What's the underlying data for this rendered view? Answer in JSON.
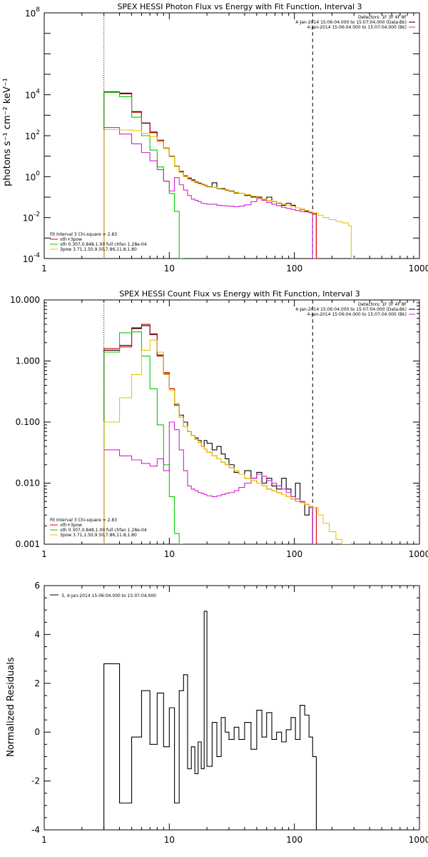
{
  "chart_data": [
    {
      "type": "line",
      "title": "SPEX HESSI Photon Flux vs Energy with Fit Function, Interval 3",
      "ylabel": "photons s⁻¹ cm⁻² keV⁻¹",
      "xlabel": "",
      "xscale": "log",
      "yscale": "log",
      "xlim": [
        1,
        1000
      ],
      "ylim": [
        0.0001,
        100000000
      ],
      "xticks": [
        {
          "v": 1,
          "t": "1"
        },
        {
          "v": 10,
          "t": "10"
        },
        {
          "v": 100,
          "t": "100"
        },
        {
          "v": 1000,
          "t": "1000"
        }
      ],
      "yticks": [
        {
          "v": 0.0001,
          "b": "10",
          "e": "-4"
        },
        {
          "v": 0.01,
          "b": "10",
          "e": "-2"
        },
        {
          "v": 1,
          "b": "10",
          "e": "0"
        },
        {
          "v": 100,
          "b": "10",
          "e": "2"
        },
        {
          "v": 10000,
          "b": "10",
          "e": "4"
        },
        {
          "v": 100000000,
          "b": "10",
          "e": "8"
        }
      ],
      "vlines": [
        {
          "x": 3,
          "style": "dotted"
        },
        {
          "x": 140,
          "style": "dashed"
        }
      ],
      "legend_top": [
        "Detectors: 1F 3F 4F 8F",
        "4-Jan-2014 15:06:04.000 to 15:07:04.000 (Data-Bk)",
        "4-Jan-2014 15:06:04.000 to 15:07:04.000 (Bk)"
      ],
      "legend_top_colors": [
        "#000000",
        "#000000",
        "#d020d0"
      ],
      "legend_bottom": [
        "Fit Interval 3   Chi-square = 2.83",
        "vth+3pow",
        "vth 0.307,0.848,1.00  full chfan 1.28e-04",
        "3pow 3.71,1.50,9.50,7.86,11.8,1.80"
      ],
      "legend_bottom_colors": [
        "#000000",
        "#e00000",
        "#00cc00",
        "#e6c800"
      ],
      "series": [
        {
          "color": "#000000",
          "x": [
            3,
            4,
            5,
            6,
            7,
            8,
            9,
            10,
            11,
            12,
            13,
            14,
            15,
            16,
            17,
            18,
            19,
            20,
            22,
            24,
            26,
            28,
            30,
            33,
            36,
            40,
            45,
            50,
            55,
            60,
            66,
            72,
            79,
            86,
            94,
            102,
            111,
            121,
            131,
            140
          ],
          "y": [
            13000,
            12000,
            1500,
            420,
            150,
            60,
            25,
            10,
            3.2,
            1.8,
            1.1,
            0.85,
            0.7,
            0.55,
            0.48,
            0.42,
            0.38,
            0.32,
            0.5,
            0.26,
            0.26,
            0.22,
            0.2,
            0.16,
            0.15,
            0.12,
            0.1,
            0.1,
            0.07,
            0.1,
            0.06,
            0.05,
            0.04,
            0.05,
            0.04,
            0.03,
            0.025,
            0.02,
            0.018,
            0.015
          ]
        },
        {
          "color": "#e00000",
          "x": [
            3,
            4,
            5,
            6,
            7,
            8,
            9,
            10,
            11,
            12,
            13,
            14,
            15,
            16,
            17,
            18,
            19,
            20,
            22,
            24,
            26,
            28,
            30,
            33,
            36,
            40,
            45,
            50,
            55,
            60,
            66,
            72,
            79,
            86,
            94,
            102,
            111,
            121,
            131,
            140
          ],
          "y": [
            14000,
            11000,
            1400,
            400,
            140,
            58,
            24,
            9.5,
            3.2,
            1.7,
            1.05,
            0.78,
            0.62,
            0.52,
            0.45,
            0.4,
            0.36,
            0.33,
            0.3,
            0.27,
            0.24,
            0.21,
            0.19,
            0.17,
            0.15,
            0.13,
            0.11,
            0.09,
            0.08,
            0.068,
            0.06,
            0.052,
            0.045,
            0.04,
            0.034,
            0.03,
            0.026,
            0.022,
            0.019,
            0.017
          ]
        },
        {
          "color": "#00cc00",
          "x": [
            3,
            4,
            5,
            6,
            7,
            8,
            9,
            10,
            11,
            12
          ],
          "y": [
            13000,
            8000,
            800,
            100,
            20,
            3,
            0.6,
            0.15,
            0.02,
            0.0001
          ]
        },
        {
          "color": "#d020d0",
          "x": [
            3,
            4,
            5,
            6,
            7,
            8,
            9,
            10,
            11,
            12,
            13,
            14,
            15,
            16,
            17,
            18,
            19,
            20,
            22,
            24,
            26,
            28,
            30,
            33,
            36,
            40,
            45,
            50,
            55,
            60,
            66,
            72,
            79,
            86,
            94,
            102,
            111,
            121,
            131,
            140
          ],
          "y": [
            250,
            120,
            40,
            15,
            6,
            2.2,
            0.6,
            0.2,
            0.9,
            0.4,
            0.22,
            0.12,
            0.08,
            0.07,
            0.06,
            0.05,
            0.048,
            0.045,
            0.045,
            0.04,
            0.038,
            0.037,
            0.036,
            0.034,
            0.036,
            0.042,
            0.06,
            0.085,
            0.07,
            0.055,
            0.045,
            0.038,
            0.032,
            0.028,
            0.025,
            0.022,
            0.02,
            0.019,
            0.017,
            0.0001
          ]
        },
        {
          "color": "#e6c800",
          "x": [
            3,
            4,
            5,
            6,
            7,
            8,
            9,
            10,
            11,
            12,
            13,
            14,
            15,
            16,
            17,
            18,
            19,
            20,
            22,
            24,
            26,
            28,
            30,
            33,
            36,
            40,
            45,
            50,
            55,
            60,
            66,
            72,
            79,
            86,
            94,
            102,
            111,
            121,
            131,
            140,
            155,
            170,
            190,
            215,
            240,
            270,
            285
          ],
          "y": [
            200,
            190,
            180,
            130,
            90,
            50,
            24,
            9.5,
            3.1,
            1.6,
            1.0,
            0.75,
            0.6,
            0.5,
            0.44,
            0.4,
            0.36,
            0.33,
            0.3,
            0.27,
            0.24,
            0.21,
            0.19,
            0.17,
            0.15,
            0.13,
            0.11,
            0.09,
            0.08,
            0.068,
            0.06,
            0.052,
            0.045,
            0.04,
            0.034,
            0.03,
            0.026,
            0.022,
            0.019,
            0.017,
            0.013,
            0.01,
            0.008,
            0.0065,
            0.0055,
            0.004,
            0.0001
          ]
        }
      ]
    },
    {
      "type": "line",
      "title": "SPEX HESSI Count Flux vs Energy with Fit Function, Interval 3",
      "ylabel": "",
      "xlabel": "",
      "xscale": "log",
      "yscale": "log",
      "xlim": [
        1,
        1000
      ],
      "ylim": [
        0.001,
        10
      ],
      "xticks": [
        {
          "v": 1,
          "t": "1"
        },
        {
          "v": 10,
          "t": "10"
        },
        {
          "v": 100,
          "t": "100"
        },
        {
          "v": 1000,
          "t": "1000"
        }
      ],
      "yticks": [
        {
          "v": 0.001,
          "t": "0.001"
        },
        {
          "v": 0.01,
          "t": "0.010"
        },
        {
          "v": 0.1,
          "t": "0.100"
        },
        {
          "v": 1,
          "t": "1.000"
        },
        {
          "v": 10,
          "t": "10.000"
        }
      ],
      "vlines": [
        {
          "x": 3,
          "style": "dotted"
        },
        {
          "x": 140,
          "style": "dashed"
        }
      ],
      "legend_top": [
        "Detectors: 1F 3F 4F 8F",
        "4-Jan-2014 15:06:04.000 to 15:07:04.000 (Data-Bk)",
        "4-Jan-2014 15:06:04.000 to 15:07:04.000 (Bk)"
      ],
      "legend_top_colors": [
        "#000000",
        "#000000",
        "#d020d0"
      ],
      "legend_bottom": [
        "Fit Interval 3   Chi-square = 2.83",
        "vth+3pow",
        "vth 0.307,0.848,1.00  full chfan 1.28e-04",
        "3pow 3.71,1.50,9.50,7.86,11.8,1.80"
      ],
      "legend_bottom_colors": [
        "#000000",
        "#e00000",
        "#00cc00",
        "#e6c800"
      ],
      "series": [
        {
          "color": "#000000",
          "x": [
            3,
            4,
            5,
            6,
            7,
            8,
            9,
            10,
            11,
            12,
            13,
            14,
            15,
            16,
            17,
            18,
            19,
            20,
            22,
            24,
            26,
            28,
            30,
            33,
            36,
            40,
            45,
            50,
            55,
            60,
            66,
            72,
            79,
            86,
            94,
            102,
            111,
            121,
            131,
            140
          ],
          "y": [
            1.5,
            1.8,
            3.4,
            3.8,
            2.7,
            1.25,
            0.62,
            0.35,
            0.19,
            0.13,
            0.1,
            0.07,
            0.06,
            0.055,
            0.05,
            0.04,
            0.05,
            0.045,
            0.035,
            0.04,
            0.03,
            0.025,
            0.02,
            0.015,
            0.014,
            0.016,
            0.012,
            0.015,
            0.01,
            0.012,
            0.009,
            0.008,
            0.012,
            0.008,
            0.006,
            0.01,
            0.005,
            0.003,
            0.004,
            0.001
          ]
        },
        {
          "color": "#e00000",
          "x": [
            3,
            4,
            5,
            6,
            7,
            8,
            9,
            10,
            11,
            12,
            13,
            14,
            15,
            16,
            17,
            18,
            19,
            20,
            22,
            24,
            26,
            28,
            30,
            33,
            36,
            40,
            45,
            50,
            55,
            60,
            66,
            72,
            79,
            86,
            94,
            102,
            111,
            121,
            131,
            140
          ],
          "y": [
            1.6,
            1.7,
            3.5,
            4.0,
            2.8,
            1.2,
            0.65,
            0.35,
            0.2,
            0.12,
            0.085,
            0.07,
            0.06,
            0.052,
            0.046,
            0.04,
            0.036,
            0.032,
            0.028,
            0.025,
            0.022,
            0.02,
            0.018,
            0.016,
            0.014,
            0.012,
            0.011,
            0.01,
            0.009,
            0.008,
            0.0075,
            0.007,
            0.0065,
            0.006,
            0.0055,
            0.005,
            0.0048,
            0.0045,
            0.0042,
            0.004
          ]
        },
        {
          "color": "#00cc00",
          "x": [
            3,
            4,
            5,
            6,
            7,
            8,
            9,
            10,
            11,
            12
          ],
          "y": [
            1.4,
            2.9,
            3.0,
            1.2,
            0.35,
            0.09,
            0.02,
            0.006,
            0.0015,
            0.001
          ]
        },
        {
          "color": "#d020d0",
          "x": [
            3,
            4,
            5,
            6,
            7,
            8,
            9,
            10,
            11,
            12,
            13,
            14,
            15,
            16,
            17,
            18,
            19,
            20,
            22,
            24,
            26,
            28,
            30,
            33,
            36,
            40,
            45,
            50,
            55,
            60,
            66,
            72,
            79,
            86,
            94,
            102,
            111,
            121,
            131,
            140
          ],
          "y": [
            0.035,
            0.028,
            0.024,
            0.021,
            0.019,
            0.025,
            0.016,
            0.1,
            0.075,
            0.035,
            0.016,
            0.009,
            0.008,
            0.0075,
            0.007,
            0.0068,
            0.0065,
            0.0062,
            0.006,
            0.0062,
            0.0065,
            0.0068,
            0.007,
            0.0075,
            0.0085,
            0.01,
            0.012,
            0.014,
            0.013,
            0.011,
            0.01,
            0.009,
            0.008,
            0.007,
            0.006,
            0.0055,
            0.005,
            0.0045,
            0.004,
            0.001
          ]
        },
        {
          "color": "#e6c800",
          "x": [
            3,
            4,
            5,
            6,
            7,
            8,
            9,
            10,
            11,
            12,
            13,
            14,
            15,
            16,
            17,
            18,
            19,
            20,
            22,
            24,
            26,
            28,
            30,
            33,
            36,
            40,
            45,
            50,
            55,
            60,
            66,
            72,
            79,
            86,
            94,
            102,
            111,
            121,
            131,
            140,
            155,
            170,
            190,
            215,
            240,
            265
          ],
          "y": [
            0.1,
            0.25,
            0.6,
            1.5,
            2.2,
            1.4,
            0.6,
            0.33,
            0.2,
            0.12,
            0.085,
            0.07,
            0.06,
            0.052,
            0.046,
            0.04,
            0.036,
            0.032,
            0.028,
            0.025,
            0.022,
            0.02,
            0.018,
            0.016,
            0.014,
            0.012,
            0.011,
            0.01,
            0.009,
            0.008,
            0.0075,
            0.007,
            0.0065,
            0.006,
            0.0055,
            0.005,
            0.0048,
            0.0045,
            0.0042,
            0.004,
            0.003,
            0.0022,
            0.0016,
            0.0012,
            0.001,
            0.001
          ]
        }
      ]
    },
    {
      "type": "line",
      "title": "",
      "ylabel": "Normalized Residuals",
      "xlabel": "",
      "xscale": "log",
      "yscale": "linear",
      "xlim": [
        1,
        1000
      ],
      "ylim": [
        -4,
        6
      ],
      "xticks": [
        {
          "v": 1,
          "t": "1"
        },
        {
          "v": 10,
          "t": "10"
        },
        {
          "v": 100,
          "t": "100"
        },
        {
          "v": 1000,
          "t": "1000"
        }
      ],
      "yticks": [
        {
          "v": -4,
          "t": "-4"
        },
        {
          "v": -2,
          "t": "-2"
        },
        {
          "v": 0,
          "t": "0"
        },
        {
          "v": 2,
          "t": "2"
        },
        {
          "v": 4,
          "t": "4"
        },
        {
          "v": 6,
          "t": "6"
        }
      ],
      "vlines": [],
      "legend_top": [
        "3,  4-Jan-2014 15:06:04.000 to 15:07:04.000"
      ],
      "legend_top_colors": [
        "#000000"
      ],
      "series": [
        {
          "color": "#000000",
          "x": [
            3,
            4,
            5,
            6,
            7,
            8,
            9,
            10,
            11,
            12,
            13,
            14,
            15,
            16,
            17,
            18,
            19,
            20,
            22,
            24,
            26,
            28,
            30,
            33,
            36,
            40,
            45,
            50,
            55,
            60,
            66,
            72,
            79,
            86,
            94,
            102,
            111,
            121,
            131,
            140
          ],
          "y": [
            2.8,
            -2.9,
            -0.2,
            1.7,
            -0.5,
            1.6,
            -0.6,
            1.0,
            -2.9,
            1.7,
            2.35,
            -1.5,
            -0.6,
            -1.7,
            -0.4,
            -1.5,
            4.95,
            -1.4,
            0.4,
            -1.0,
            0.6,
            0.0,
            -0.3,
            0.2,
            -0.3,
            0.4,
            -0.7,
            0.9,
            -0.2,
            0.8,
            -0.3,
            0.0,
            -0.4,
            0.1,
            0.6,
            -0.3,
            1.1,
            0.7,
            -0.2,
            -1.0
          ]
        }
      ]
    }
  ]
}
